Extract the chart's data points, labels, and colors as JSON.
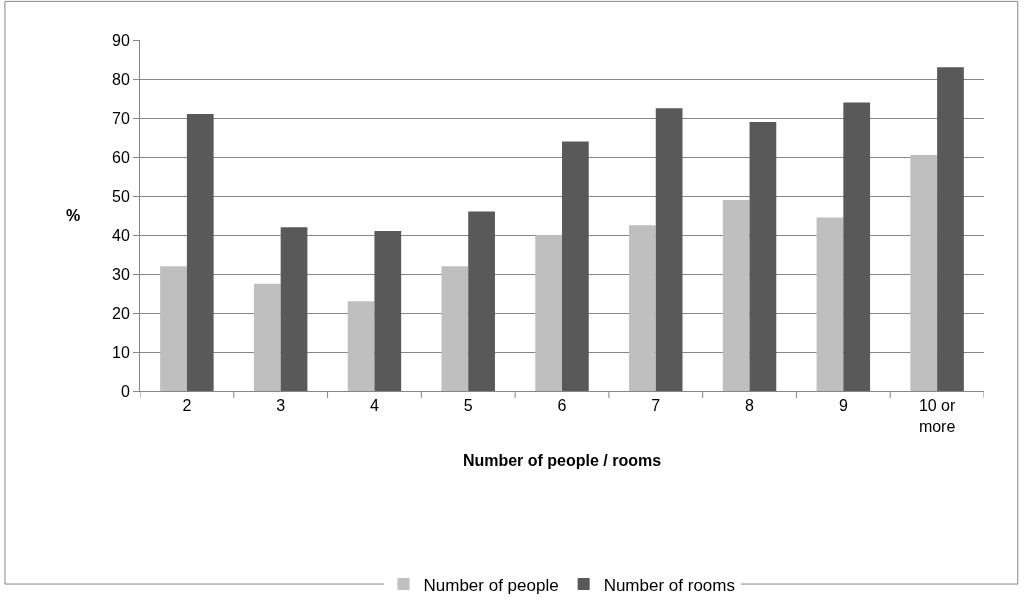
{
  "chart_data": {
    "type": "bar",
    "xlabel": "Number of people / rooms",
    "ylabel": "%",
    "categories": [
      "2",
      "3",
      "4",
      "5",
      "6",
      "7",
      "8",
      "9",
      "10 or more"
    ],
    "series": [
      {
        "name": "Number of people",
        "color": "#bfbfbf",
        "values": [
          32,
          27.5,
          23,
          32,
          40,
          42.5,
          49,
          44.5,
          60.5
        ]
      },
      {
        "name": "Number of rooms",
        "color": "#595959",
        "values": [
          71,
          42,
          41,
          46,
          64,
          72.5,
          69,
          74,
          83
        ]
      }
    ],
    "ylim": [
      0,
      90
    ],
    "yticks": [
      0,
      10,
      20,
      30,
      40,
      50,
      60,
      70,
      80,
      90
    ],
    "grid": "y",
    "legend": "bottom"
  }
}
